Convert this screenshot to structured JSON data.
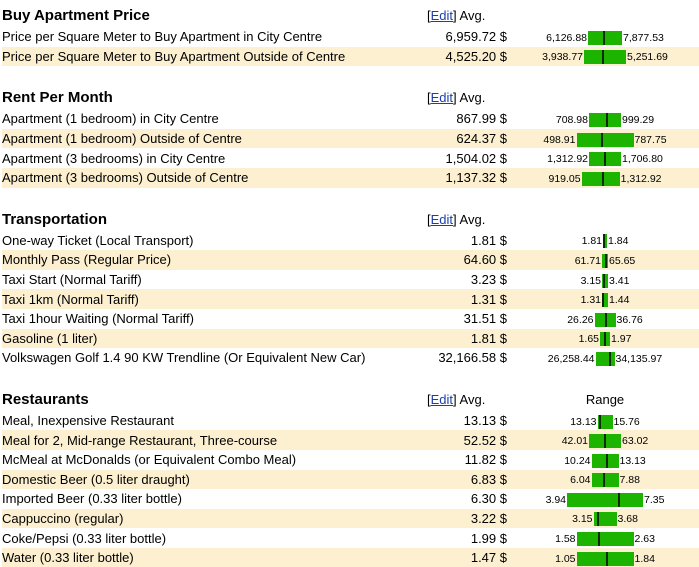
{
  "edit_label": "Edit",
  "avg_label": "Avg.",
  "range_label": "Range",
  "sections": [
    {
      "title": "Buy Apartment Price",
      "show_range_header": false,
      "rows": [
        {
          "name": "Price per Square Meter to Buy Apartment in City Centre",
          "avg": "6,959.72 $",
          "low": "6,126.88",
          "high": "7,877.53",
          "bar_fraction": 0.18,
          "mark_fraction": 0.48,
          "highlighted": false
        },
        {
          "name": "Price per Square Meter to Buy Apartment Outside of Centre",
          "avg": "4,525.20 $",
          "low": "3,938.77",
          "high": "5,251.69",
          "bar_fraction": 0.22,
          "mark_fraction": 0.45,
          "highlighted": true
        }
      ]
    },
    {
      "title": "Rent Per Month",
      "show_range_header": false,
      "rows": [
        {
          "name": "Apartment (1 bedroom) in City Centre",
          "avg": "867.99 $",
          "low": "708.98",
          "high": "999.29",
          "bar_fraction": 0.17,
          "mark_fraction": 0.55,
          "highlighted": false
        },
        {
          "name": "Apartment (1 bedroom) Outside of Centre",
          "avg": "624.37 $",
          "low": "498.91",
          "high": "787.75",
          "bar_fraction": 0.3,
          "mark_fraction": 0.43,
          "highlighted": true
        },
        {
          "name": "Apartment (3 bedrooms) in City Centre",
          "avg": "1,504.02 $",
          "low": "1,312.92",
          "high": "1,706.80",
          "bar_fraction": 0.17,
          "mark_fraction": 0.49,
          "highlighted": false
        },
        {
          "name": "Apartment (3 bedrooms) Outside of Centre",
          "avg": "1,137.32 $",
          "low": "919.05",
          "high": "1,312.92",
          "bar_fraction": 0.2,
          "mark_fraction": 0.55,
          "highlighted": true
        }
      ]
    },
    {
      "title": "Transportation",
      "show_range_header": false,
      "rows": [
        {
          "name": "One-way Ticket (Local Transport)",
          "avg": "1.81 $",
          "low": "1.81",
          "high": "1.84",
          "bar_fraction": 0.02,
          "mark_fraction": 0.1,
          "highlighted": false
        },
        {
          "name": "Monthly Pass (Regular Price)",
          "avg": "64.60 $",
          "low": "61.71",
          "high": "65.65",
          "bar_fraction": 0.03,
          "mark_fraction": 0.73,
          "highlighted": true
        },
        {
          "name": "Taxi Start (Normal Tariff)",
          "avg": "3.23 $",
          "low": "3.15",
          "high": "3.41",
          "bar_fraction": 0.03,
          "mark_fraction": 0.31,
          "highlighted": false
        },
        {
          "name": "Taxi 1km (Normal Tariff)",
          "avg": "1.31 $",
          "low": "1.31",
          "high": "1.44",
          "bar_fraction": 0.03,
          "mark_fraction": 0.1,
          "highlighted": true
        },
        {
          "name": "Taxi 1hour Waiting (Normal Tariff)",
          "avg": "31.51 $",
          "low": "26.26",
          "high": "36.76",
          "bar_fraction": 0.11,
          "mark_fraction": 0.5,
          "highlighted": false
        },
        {
          "name": "Gasoline (1 liter)",
          "avg": "1.81 $",
          "low": "1.65",
          "high": "1.97",
          "bar_fraction": 0.05,
          "mark_fraction": 0.5,
          "highlighted": true
        },
        {
          "name": "Volkswagen Golf 1.4 90 KW Trendline (Or Equivalent New Car)",
          "avg": "32,166.58 $",
          "low": "26,258.44",
          "high": "34,135.97",
          "bar_fraction": 0.1,
          "mark_fraction": 0.75,
          "highlighted": false
        }
      ]
    },
    {
      "title": "Restaurants",
      "show_range_header": true,
      "rows": [
        {
          "name": "Meal, Inexpensive Restaurant",
          "avg": "13.13 $",
          "low": "13.13",
          "high": "15.76",
          "bar_fraction": 0.08,
          "mark_fraction": 0.1,
          "highlighted": false
        },
        {
          "name": "Meal for 2, Mid-range Restaurant, Three-course",
          "avg": "52.52 $",
          "low": "42.01",
          "high": "63.02",
          "bar_fraction": 0.17,
          "mark_fraction": 0.5,
          "highlighted": true
        },
        {
          "name": "McMeal at McDonalds (or Equivalent Combo Meal)",
          "avg": "11.82 $",
          "low": "10.24",
          "high": "13.13",
          "bar_fraction": 0.14,
          "mark_fraction": 0.55,
          "highlighted": false
        },
        {
          "name": "Domestic Beer (0.5 liter draught)",
          "avg": "6.83 $",
          "low": "6.04",
          "high": "7.88",
          "bar_fraction": 0.14,
          "mark_fraction": 0.43,
          "highlighted": true
        },
        {
          "name": "Imported Beer (0.33 liter bottle)",
          "avg": "6.30 $",
          "low": "3.94",
          "high": "7.35",
          "bar_fraction": 0.4,
          "mark_fraction": 0.69,
          "highlighted": false
        },
        {
          "name": "Cappuccino (regular)",
          "avg": "3.22 $",
          "low": "3.15",
          "high": "3.68",
          "bar_fraction": 0.12,
          "mark_fraction": 0.13,
          "highlighted": true
        },
        {
          "name": "Coke/Pepsi (0.33 liter bottle)",
          "avg": "1.99 $",
          "low": "1.58",
          "high": "2.63",
          "bar_fraction": 0.3,
          "mark_fraction": 0.39,
          "highlighted": false
        },
        {
          "name": "Water (0.33 liter bottle)",
          "avg": "1.47 $",
          "low": "1.05",
          "high": "1.84",
          "bar_fraction": 0.3,
          "mark_fraction": 0.53,
          "highlighted": true
        }
      ]
    }
  ]
}
